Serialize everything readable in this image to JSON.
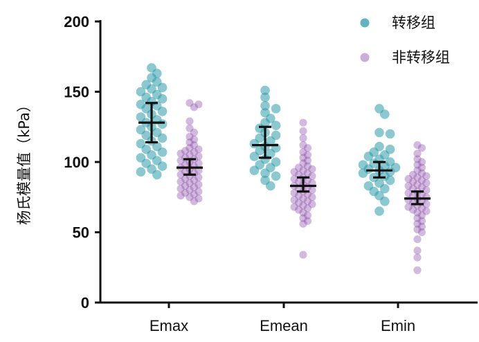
{
  "chart_data": {
    "type": "scatter",
    "title": "",
    "xlabel": "",
    "ylabel": "杨氏模量值（kPa）",
    "ylim": [
      0,
      200
    ],
    "yticks": [
      0,
      50,
      100,
      150,
      200
    ],
    "grid": false,
    "legend_position": "top-right",
    "categories": [
      "Emax",
      "Emean",
      "Emin"
    ],
    "series": [
      {
        "name": "转移组",
        "color": "#2e9aa8",
        "groups": [
          {
            "category": "Emax",
            "mean": 128,
            "err_low": 114,
            "err_high": 142,
            "values": [
              167,
              163,
              160,
              157,
              155,
              153,
              152,
              150,
              148,
              146,
              145,
              143,
              141,
              140,
              138,
              136,
              134,
              132,
              130,
              128,
              127,
              125,
              123,
              121,
              119,
              117,
              115,
              113,
              111,
              109,
              107,
              105,
              103,
              101,
              99,
              97,
              95,
              93,
              91
            ]
          },
          {
            "category": "Emean",
            "mean": 112,
            "err_low": 103,
            "err_high": 125,
            "values": [
              151,
              146,
              140,
              138,
              135,
              131,
              128,
              126,
              124,
              121,
              119,
              117,
              115,
              113,
              111,
              110,
              108,
              106,
              104,
              102,
              100,
              98,
              96,
              94,
              92,
              90,
              87,
              83
            ]
          },
          {
            "category": "Emin",
            "mean": 94,
            "err_low": 89,
            "err_high": 100,
            "values": [
              138,
              134,
              121,
              120,
              111,
              109,
              107,
              105,
              104,
              102,
              100,
              99,
              98,
              97,
              96,
              95,
              94,
              93,
              92,
              90,
              89,
              87,
              85,
              83,
              81,
              79,
              76,
              72,
              65
            ]
          }
        ]
      },
      {
        "name": "非转移组",
        "color": "#8a4aa8",
        "groups": [
          {
            "category": "Emax",
            "mean": 96,
            "err_low": 91,
            "err_high": 102,
            "values": [
              142,
              141,
              139,
              129,
              124,
              121,
              118,
              116,
              114,
              112,
              110,
              109,
              108,
              107,
              106,
              105,
              104,
              103,
              102,
              101,
              100,
              99,
              98,
              97,
              96,
              95,
              94,
              93,
              92,
              91,
              90,
              89,
              88,
              87,
              86,
              85,
              84,
              83,
              82,
              81,
              80,
              79,
              78,
              77,
              76,
              75,
              74,
              72
            ]
          },
          {
            "category": "Emean",
            "mean": 83,
            "err_low": 79,
            "err_high": 89,
            "values": [
              128,
              122,
              117,
              112,
              110,
              107,
              105,
              103,
              101,
              99,
              97,
              96,
              95,
              94,
              93,
              92,
              91,
              90,
              89,
              88,
              87,
              86,
              85,
              84,
              83,
              82,
              81,
              80,
              79,
              78,
              77,
              76,
              75,
              74,
              73,
              72,
              71,
              70,
              69,
              68,
              67,
              66,
              64,
              62,
              60,
              58,
              56,
              34
            ]
          },
          {
            "category": "Emin",
            "mean": 74,
            "err_low": 70,
            "err_high": 79,
            "values": [
              112,
              110,
              106,
              102,
              100,
              98,
              96,
              94,
              92,
              91,
              90,
              89,
              88,
              87,
              86,
              85,
              84,
              83,
              82,
              81,
              80,
              79,
              78,
              77,
              76,
              75,
              74,
              73,
              72,
              71,
              70,
              69,
              68,
              67,
              66,
              65,
              64,
              62,
              60,
              58,
              56,
              54,
              52,
              50,
              45,
              37,
              32,
              23
            ]
          }
        ]
      }
    ]
  }
}
